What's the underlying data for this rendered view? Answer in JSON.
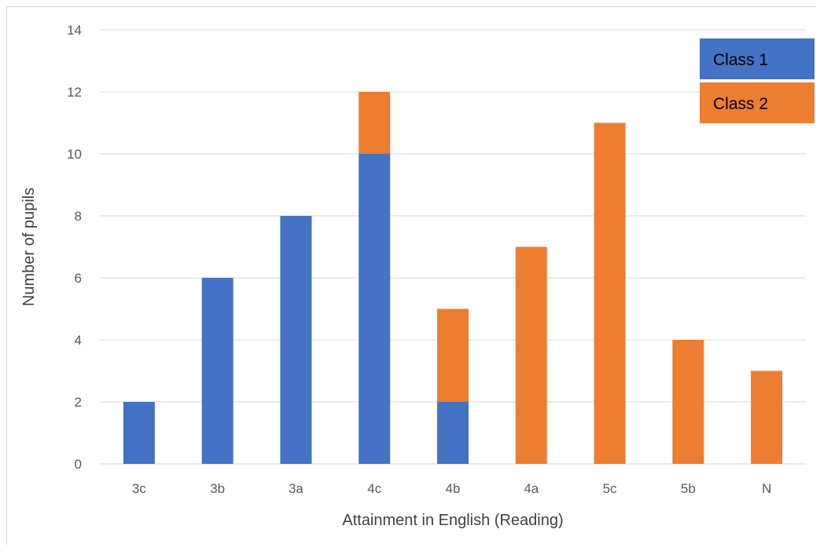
{
  "chart_data": {
    "type": "bar",
    "stacked": true,
    "categories": [
      "3c",
      "3b",
      "3a",
      "4c",
      "4b",
      "4a",
      "5c",
      "5b",
      "N"
    ],
    "series": [
      {
        "name": "Class 1",
        "color": "#4472c4",
        "values": [
          2,
          6,
          8,
          10,
          2,
          0,
          0,
          0,
          0
        ]
      },
      {
        "name": "Class 2",
        "color": "#ed7d31",
        "values": [
          0,
          0,
          0,
          2,
          3,
          7,
          11,
          4,
          3
        ]
      }
    ],
    "title": "",
    "xlabel": "Attainment in English (Reading)",
    "ylabel": "Number of pupils",
    "ylim": [
      0,
      14
    ],
    "yticks": [
      0,
      2,
      4,
      6,
      8,
      10,
      12,
      14
    ],
    "grid": true,
    "legend_position": "top-right"
  }
}
